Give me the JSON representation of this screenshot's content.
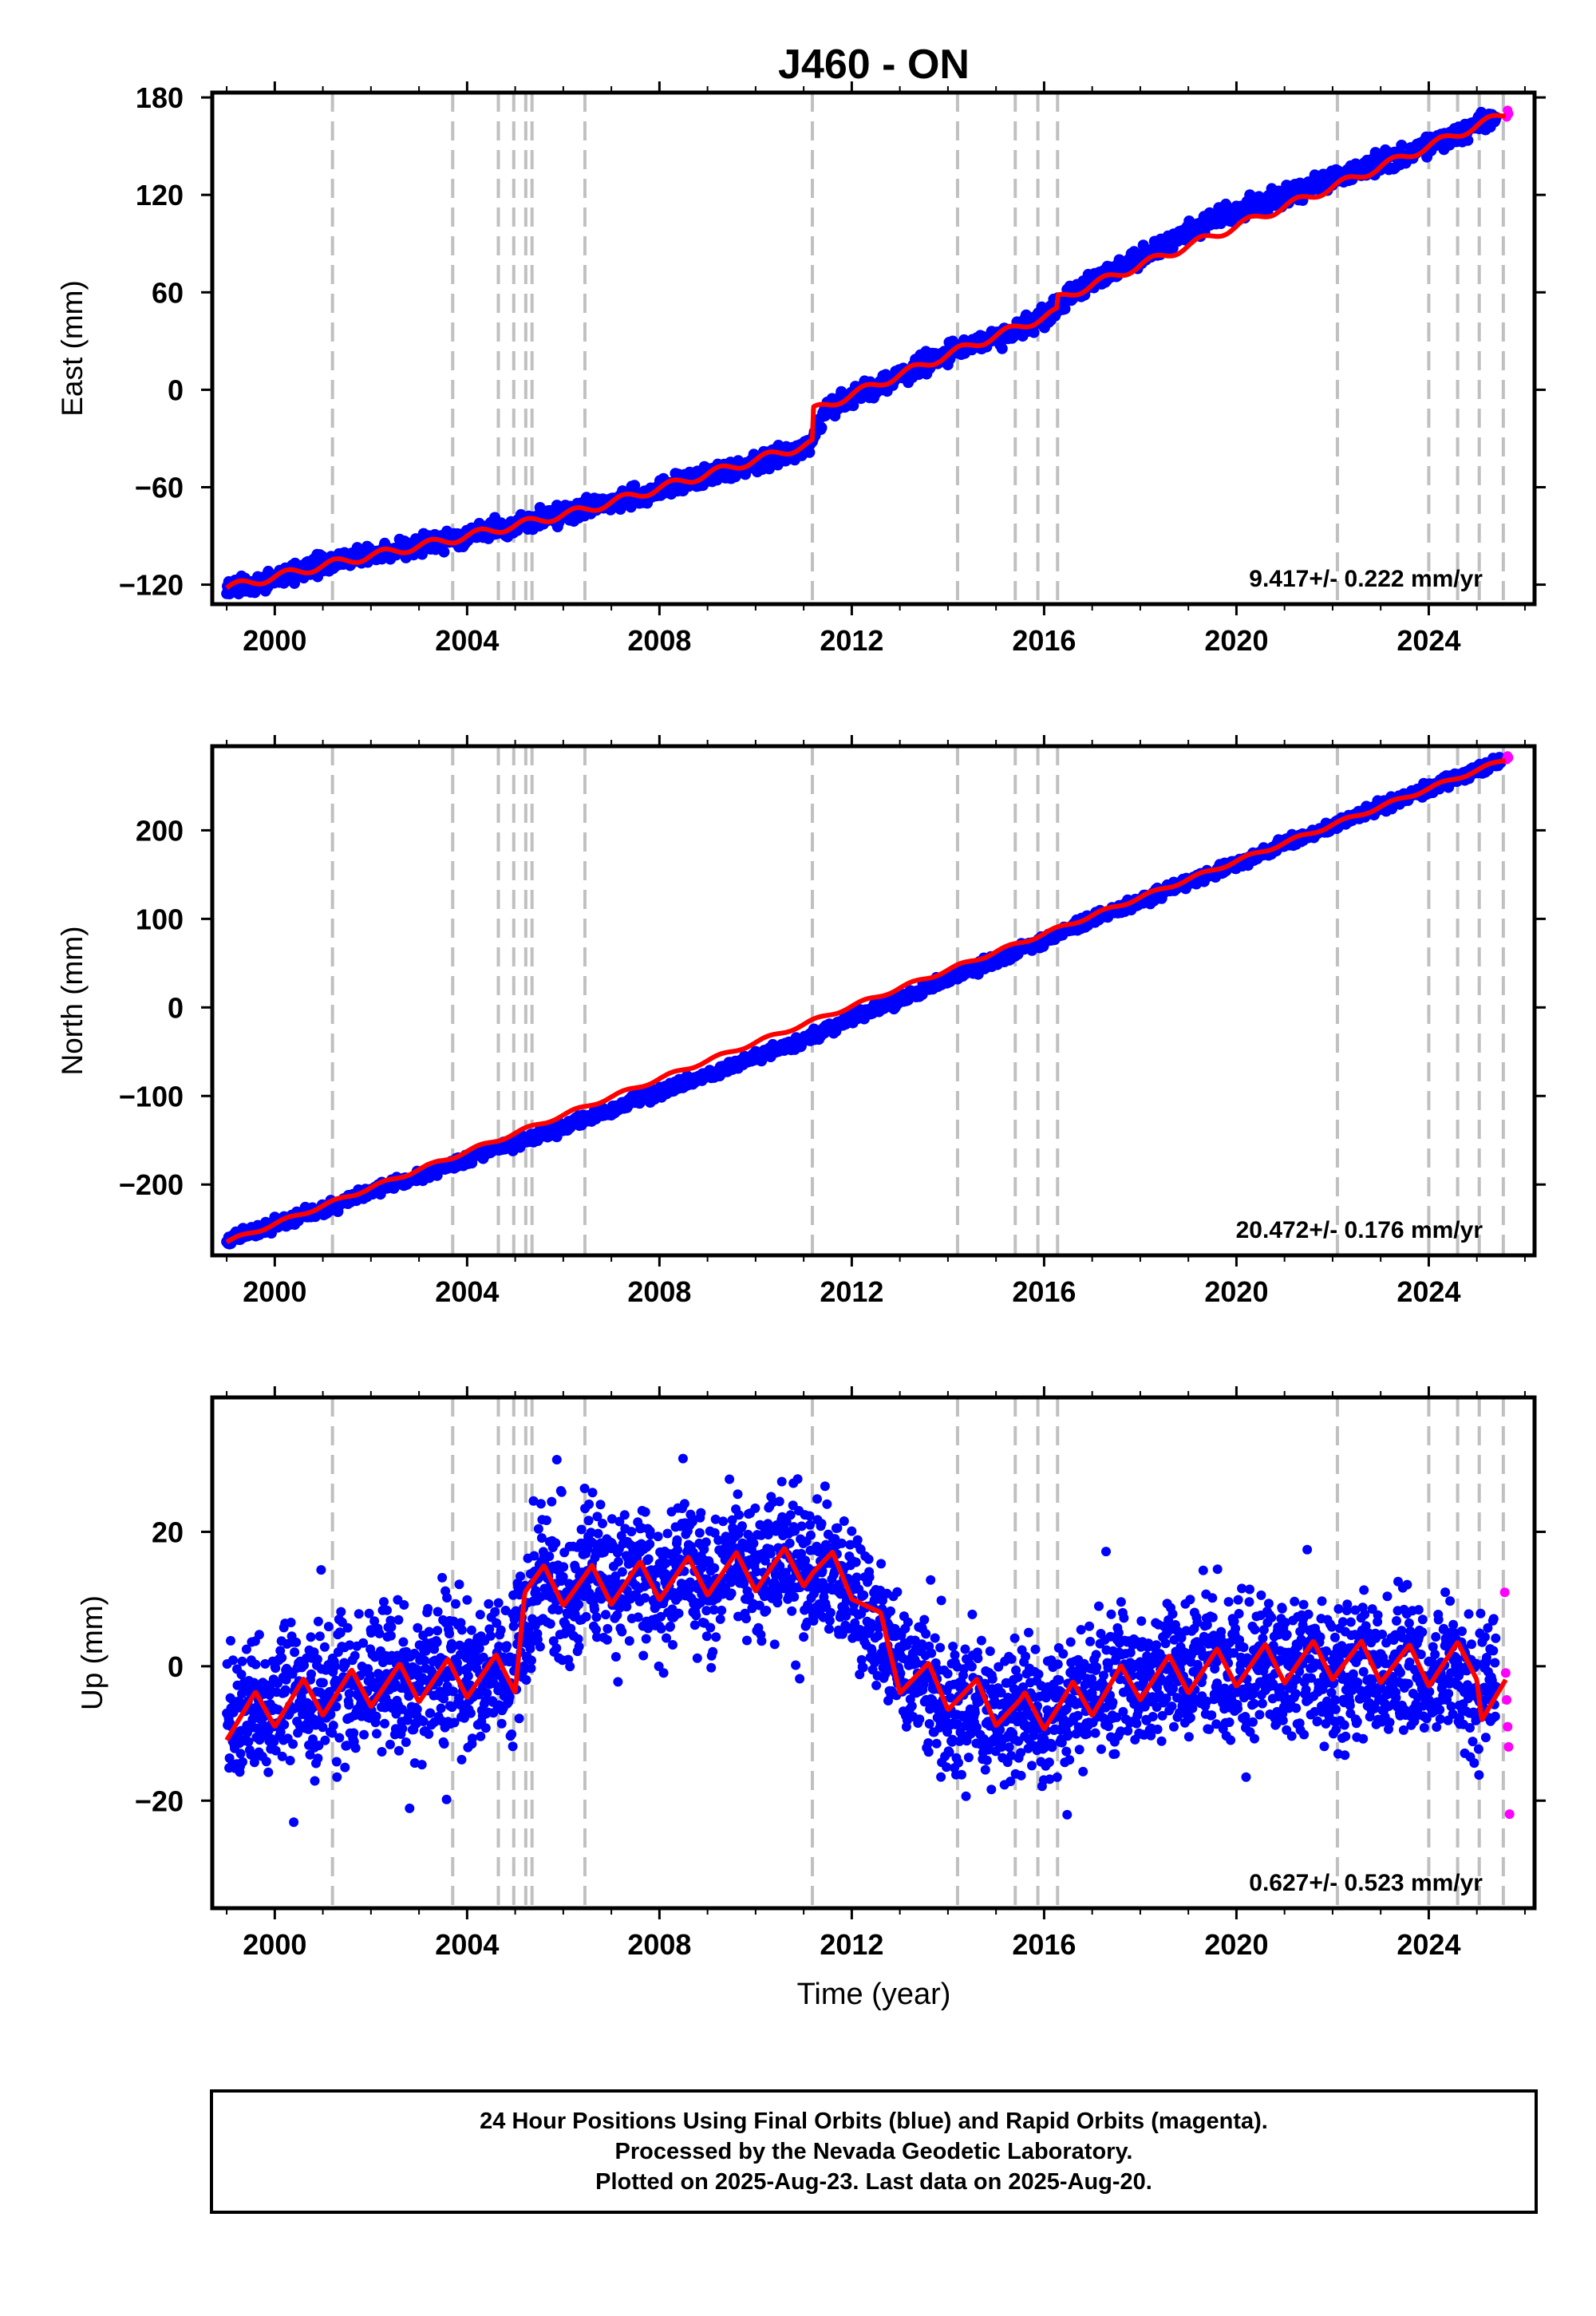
{
  "chart_data": {
    "type": "scatter",
    "title": "J460 - ON",
    "xlabel": "Time (year)",
    "xlim": [
      1998.7,
      2026.2
    ],
    "xticks": [
      2000,
      2004,
      2008,
      2012,
      2016,
      2020,
      2024
    ],
    "xtick_labels": [
      "2000",
      "2004",
      "2008",
      "2012",
      "2016",
      "2020",
      "2024"
    ],
    "grid": false,
    "event_lines_year": [
      2001.2,
      2003.7,
      2004.65,
      2004.97,
      2005.22,
      2005.35,
      2006.45,
      2011.18,
      2014.2,
      2015.4,
      2015.87,
      2016.28,
      2022.1,
      2024.0,
      2024.6,
      2025.05,
      2025.55
    ],
    "panels": [
      {
        "ylabel": "East (mm)",
        "ylim": [
          -132,
          183
        ],
        "yticks": [
          -120,
          -60,
          0,
          60,
          120,
          180
        ],
        "ytick_labels": [
          "−120",
          "−60",
          "0",
          "60",
          "120",
          "180"
        ],
        "rate_label": "9.417+/- 0.222 mm/yr",
        "rate_mm_per_yr": 9.417,
        "rate_sigma": 0.222,
        "series": [
          {
            "name": "Final Orbits (blue)",
            "color": "#0000ff",
            "x": [
              1999.0,
              1999.5,
              2000.0,
              2000.5,
              2001.0,
              2001.5,
              2002.0,
              2002.5,
              2003.0,
              2003.5,
              2004.0,
              2004.5,
              2005.0,
              2005.5,
              2006.0,
              2006.5,
              2007.0,
              2007.5,
              2008.0,
              2008.5,
              2009.0,
              2009.5,
              2010.0,
              2010.5,
              2011.0,
              2011.18,
              2011.5,
              2012.0,
              2012.5,
              2013.0,
              2013.5,
              2014.0,
              2014.5,
              2015.0,
              2015.5,
              2016.0,
              2016.3,
              2016.5,
              2017.0,
              2017.5,
              2018.0,
              2018.5,
              2019.0,
              2019.5,
              2020.0,
              2020.5,
              2021.0,
              2021.5,
              2022.0,
              2022.5,
              2023.0,
              2023.5,
              2024.0,
              2024.5,
              2025.0,
              2025.4
            ],
            "y": [
              -122,
              -120,
              -116,
              -112,
              -108,
              -104,
              -102,
              -99,
              -95,
              -93,
              -90,
              -86,
              -84,
              -80,
              -77,
              -73,
              -69,
              -65,
              -61,
              -57,
              -53,
              -50,
              -45,
              -41,
              -36,
              -32,
              -10,
              -5,
              2,
              8,
              16,
              22,
              28,
              32,
              37,
              45,
              52,
              58,
              67,
              74,
              82,
              90,
              98,
              104,
              110,
              115,
              120,
              124,
              130,
              135,
              140,
              144,
              150,
              156,
              164,
              168
            ]
          },
          {
            "name": "Rapid Orbits (magenta)",
            "color": "#ff00ff",
            "x": [
              2025.62,
              2025.64,
              2025.66
            ],
            "y": [
              168,
              172,
              170
            ]
          },
          {
            "name": "model",
            "color": "#ff0000",
            "x": [
              1999.0,
              2001.2,
              2003.7,
              2006.45,
              2011.18,
              2011.19,
              2014.2,
              2016.28,
              2016.29,
              2022.1,
              2024.0,
              2025.6
            ],
            "y": [
              -122,
              -107,
              -92,
              -74,
              -33,
              -13,
              24,
              48,
              56,
              126,
              150,
              170
            ]
          }
        ]
      },
      {
        "ylabel": "North (mm)",
        "ylim": [
          -280,
          295
        ],
        "yticks": [
          -200,
          -100,
          0,
          100,
          200
        ],
        "ytick_labels": [
          "−200",
          "−100",
          "0",
          "100",
          "200"
        ],
        "rate_label": "20.472+/- 0.176 mm/yr",
        "rate_mm_per_yr": 20.472,
        "rate_sigma": 0.176,
        "series": [
          {
            "name": "Final Orbits (blue)",
            "color": "#0000ff",
            "x": [
              1999.0,
              2000.0,
              2001.0,
              2002.0,
              2003.0,
              2004.0,
              2005.0,
              2006.0,
              2007.0,
              2008.0,
              2009.0,
              2010.0,
              2011.0,
              2012.0,
              2013.0,
              2014.0,
              2015.0,
              2016.0,
              2017.0,
              2018.0,
              2019.0,
              2020.0,
              2021.0,
              2022.0,
              2023.0,
              2024.0,
              2025.0,
              2025.5
            ],
            "y": [
              -263,
              -245,
              -228,
              -207,
              -190,
              -170,
              -152,
              -135,
              -115,
              -96,
              -76,
              -57,
              -37,
              -12,
              8,
              32,
              54,
              76,
              100,
              120,
              142,
              162,
              184,
              205,
              226,
              248,
              268,
              278
            ]
          },
          {
            "name": "Rapid Orbits (magenta)",
            "color": "#ff00ff",
            "x": [
              2025.62,
              2025.64,
              2025.66
            ],
            "y": [
              280,
              284,
              282
            ]
          },
          {
            "name": "model",
            "color": "#ff0000",
            "x": [
              1999.0,
              2025.6
            ],
            "y": [
              -265,
              280
            ]
          }
        ]
      },
      {
        "ylabel": "Up (mm)",
        "ylim": [
          -36,
          40
        ],
        "yticks": [
          -20,
          0,
          20
        ],
        "ytick_labels": [
          "−20",
          "0",
          "20"
        ],
        "rate_label": "0.627+/- 0.523 mm/yr",
        "rate_mm_per_yr": 0.627,
        "rate_sigma": 0.523,
        "series": [
          {
            "name": "Final Orbits (blue)",
            "color": "#0000ff",
            "x": [
              1999.0,
              1999.4,
              1999.9,
              2000.3,
              2000.8,
              2001.3,
              2001.8,
              2002.3,
              2002.8,
              2003.3,
              2003.8,
              2004.3,
              2004.8,
              2005.2,
              2005.6,
              2006.1,
              2006.6,
              2007.1,
              2007.6,
              2008.1,
              2008.6,
              2009.1,
              2009.6,
              2010.1,
              2010.6,
              2011.1,
              2011.6,
              2012.1,
              2012.6,
              2013.0,
              2013.5,
              2014.0,
              2014.5,
              2015.0,
              2015.5,
              2016.0,
              2016.5,
              2017.0,
              2017.5,
              2018.0,
              2018.5,
              2019.0,
              2019.5,
              2020.0,
              2020.5,
              2021.0,
              2021.5,
              2022.0,
              2022.5,
              2023.0,
              2023.5,
              2024.0,
              2024.5,
              2025.0,
              2025.4
            ],
            "y": [
              -8,
              -4,
              -7,
              -3,
              -6,
              -2,
              -4,
              -1,
              -3,
              0,
              -2,
              1,
              -1,
              4,
              14,
              9,
              16,
              11,
              15,
              11,
              16,
              12,
              16,
              13,
              17,
              14,
              14,
              8,
              6,
              -1,
              -3,
              -6,
              -5,
              -9,
              -6,
              -9,
              -5,
              -4,
              -2,
              -3,
              0,
              -2,
              1,
              -2,
              1,
              -1,
              1,
              -2,
              0,
              -2,
              0,
              -2,
              1,
              -4,
              -2
            ]
          },
          {
            "name": "Rapid Orbits (magenta)",
            "color": "#ff00ff",
            "x": [
              2025.58,
              2025.6,
              2025.62,
              2025.64,
              2025.66,
              2025.68
            ],
            "y": [
              11,
              -1,
              -5,
              -9,
              -12,
              -22
            ]
          },
          {
            "name": "model",
            "color": "#ff0000",
            "x": [
              1999.0,
              2000.5,
              2002.0,
              2003.5,
              2005.0,
              2005.2,
              2006.7,
              2008.2,
              2009.7,
              2011.2,
              2012.0,
              2012.6,
              2013.0,
              2014.2,
              2015.5,
              2016.3,
              2018.0,
              2020.0,
              2022.1,
              2024.0,
              2025.0,
              2025.1,
              2025.6
            ],
            "y": [
              -8,
              -5,
              -3,
              -2,
              -1,
              12,
              12,
              13,
              14,
              15,
              13,
              5,
              -1,
              -4,
              -7,
              -6,
              -2,
              0,
              1,
              0,
              1,
              -6,
              -5
            ]
          }
        ]
      }
    ]
  },
  "footer": {
    "line1": "24 Hour Positions Using Final Orbits (blue) and Rapid Orbits (magenta).",
    "line2": "Processed by the Nevada Geodetic Laboratory.",
    "line3": "Plotted on 2025-Aug-23. Last data on 2025-Aug-20."
  }
}
